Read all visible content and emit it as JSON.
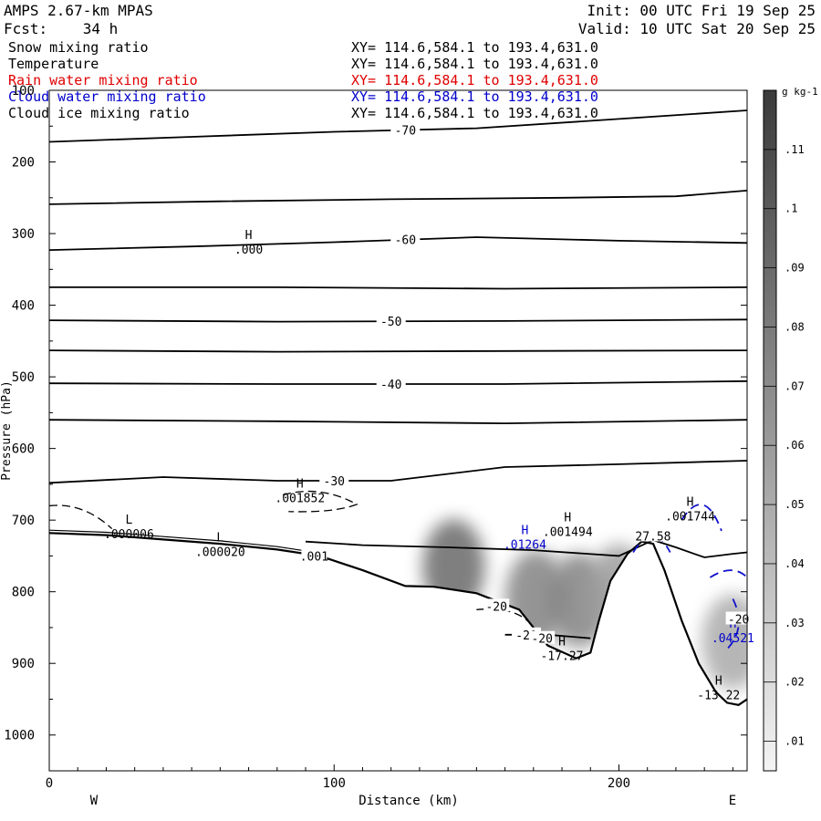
{
  "header": {
    "model": "AMPS 2.67-km MPAS",
    "init": "Init: 00 UTC Fri 19 Sep 25",
    "forecast": "Fcst:    34 h",
    "valid": "Valid: 10 UTC Sat 20 Sep 25"
  },
  "legend": [
    {
      "label": "Snow mixing ratio",
      "xy": "XY= 114.6,584.1 to 193.4,631.0",
      "color": "#000000"
    },
    {
      "label": "Temperature",
      "xy": "XY= 114.6,584.1 to 193.4,631.0",
      "color": "#000000"
    },
    {
      "label": "Rain water mixing ratio",
      "xy": "XY= 114.6,584.1 to 193.4,631.0",
      "color": "#e00000"
    },
    {
      "label": "Cloud water mixing ratio",
      "xy": "XY= 114.6,584.1 to 193.4,631.0",
      "color": "#0000cc"
    },
    {
      "label": "Cloud ice mixing ratio",
      "xy": "XY= 114.6,584.1 to 193.4,631.0",
      "color": "#000000"
    }
  ],
  "chart_data": {
    "type": "cross-section",
    "xlabel": "Distance (km)",
    "ylabel": "Pressure (hPa)",
    "xlim": [
      0,
      245
    ],
    "ylim": [
      1050,
      100
    ],
    "x_ticks": [
      0,
      100,
      200
    ],
    "y_ticks": [
      200,
      300,
      400,
      500,
      600,
      700,
      800,
      900,
      1000
    ],
    "y_top_label": "100",
    "end_labels": {
      "left": "W",
      "right": "E"
    },
    "colorbar": {
      "unit": "g kg-1",
      "levels": [
        ".01",
        ".02",
        ".03",
        ".04",
        ".05",
        ".06",
        ".07",
        ".08",
        ".09",
        ".1",
        ".11"
      ],
      "level_values": [
        0.01,
        0.02,
        0.03,
        0.04,
        0.05,
        0.06,
        0.07,
        0.08,
        0.09,
        0.1,
        0.11
      ]
    },
    "terrain": {
      "x": [
        0,
        20,
        40,
        60,
        80,
        95,
        110,
        125,
        135,
        150,
        165,
        175,
        185,
        190,
        193,
        197,
        203,
        208,
        212,
        216,
        222,
        228,
        234,
        238,
        242,
        245
      ],
      "p": [
        718,
        721,
        727,
        733,
        741,
        750,
        770,
        792,
        793,
        802,
        825,
        875,
        893,
        885,
        840,
        785,
        747,
        730,
        733,
        770,
        840,
        900,
        940,
        955,
        958,
        950
      ]
    },
    "temperature_contours": [
      {
        "value": -70,
        "label": "-70",
        "x": [
          0,
          50,
          100,
          150,
          200,
          245
        ],
        "p": [
          172,
          165,
          158,
          153,
          140,
          128
        ]
      },
      {
        "value": -65,
        "label": "",
        "x": [
          0,
          60,
          120,
          180,
          220,
          245
        ],
        "p": [
          259,
          255,
          252,
          250,
          248,
          240
        ]
      },
      {
        "value": -60,
        "label": "-60",
        "x": [
          0,
          50,
          100,
          150,
          200,
          245
        ],
        "p": [
          323,
          318,
          312,
          305,
          310,
          313
        ]
      },
      {
        "value": -55,
        "label": "",
        "x": [
          0,
          80,
          160,
          245
        ],
        "p": [
          375,
          375,
          377,
          375
        ]
      },
      {
        "value": -50,
        "label": "-50",
        "x": [
          0,
          80,
          160,
          245
        ],
        "p": [
          421,
          423,
          422,
          420
        ]
      },
      {
        "value": -45,
        "label": "",
        "x": [
          0,
          80,
          160,
          245
        ],
        "p": [
          463,
          465,
          464,
          463
        ]
      },
      {
        "value": -40,
        "label": "-40",
        "x": [
          0,
          80,
          160,
          245
        ],
        "p": [
          509,
          510,
          510,
          506
        ]
      },
      {
        "value": -35,
        "label": "",
        "x": [
          0,
          80,
          160,
          245
        ],
        "p": [
          560,
          562,
          565,
          560
        ]
      },
      {
        "value": -30,
        "label": "-30",
        "x": [
          0,
          40,
          80,
          120,
          160,
          200,
          245
        ],
        "p": [
          648,
          640,
          645,
          645,
          626,
          622,
          617
        ]
      },
      {
        "value": -25,
        "label": "",
        "x": [
          90,
          110,
          140,
          170,
          200,
          212,
          220,
          230,
          240,
          245
        ],
        "p": [
          730,
          735,
          738,
          742,
          750,
          728,
          738,
          752,
          747,
          745
        ]
      },
      {
        "value": -20,
        "label": "-20",
        "x": [
          160,
          175,
          190
        ],
        "p": [
          860,
          860,
          865
        ]
      }
    ],
    "point_labels": [
      {
        "type": "H",
        "text": ".000",
        "x": 70,
        "p": 318
      },
      {
        "type": "H",
        "text": ".001852",
        "x": 88,
        "p": 665
      },
      {
        "type": "L",
        "text": ".000006",
        "x": 28,
        "p": 715
      },
      {
        "type": "L",
        "text": ".000020",
        "x": 60,
        "p": 740
      },
      {
        "type": "H",
        "text": ".001494",
        "x": 182,
        "p": 712
      },
      {
        "type": "H",
        "text": ".01264",
        "x": 167,
        "p": 730,
        "color": "#0000cc"
      },
      {
        "type": "H",
        "text": ".001744",
        "x": 225,
        "p": 690
      },
      {
        "type": "H",
        "text": "-17.27",
        "x": 180,
        "p": 885
      },
      {
        "type": "H",
        "text": "-13.22",
        "x": 235,
        "p": 940
      },
      {
        "type": "H",
        "text": ".04521",
        "x": 240,
        "p": 860,
        "color": "#0000cc"
      }
    ],
    "inline_labels": [
      {
        "text": ".001",
        "x": 93,
        "p": 750
      },
      {
        "text": "-20",
        "x": 157,
        "p": 820
      },
      {
        "text": "-20",
        "x": 173,
        "p": 865
      },
      {
        "text": "27.58",
        "x": 212,
        "p": 722
      },
      {
        "text": "-20",
        "x": 242,
        "p": 838
      }
    ],
    "shading_maxima": [
      {
        "x": 142,
        "p": 765,
        "value": 0.05
      },
      {
        "x": 171,
        "p": 808,
        "value": 0.04
      },
      {
        "x": 186,
        "p": 812,
        "value": 0.04
      },
      {
        "x": 200,
        "p": 800,
        "value": 0.03
      },
      {
        "x": 240,
        "p": 870,
        "value": 0.025
      }
    ]
  }
}
